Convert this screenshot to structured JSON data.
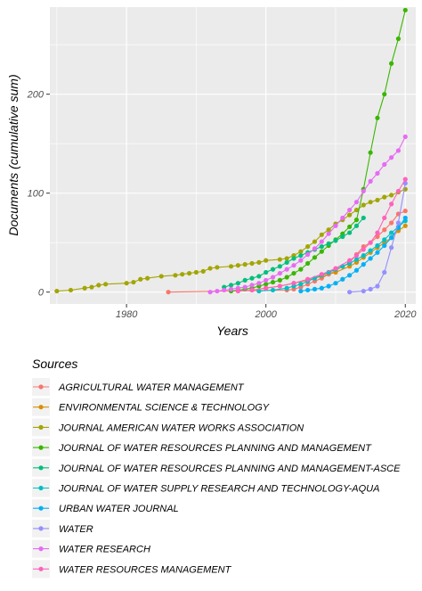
{
  "chart_data": {
    "type": "line",
    "title": "",
    "xlabel": "Years",
    "ylabel": "Documents (cumulative sum)",
    "xlim": [
      1969,
      2021.5
    ],
    "ylim": [
      -12,
      288
    ],
    "x_ticks": [
      1980,
      2000,
      2020
    ],
    "y_ticks": [
      0,
      100,
      200
    ],
    "grid": true,
    "legend": {
      "title": "Sources",
      "placement": "bottom"
    },
    "series": [
      {
        "name": "AGRICULTURAL WATER MANAGEMENT",
        "color": "#F8766D",
        "points": [
          [
            1986,
            0
          ],
          [
            2003,
            2
          ],
          [
            2004,
            3
          ],
          [
            2005,
            5
          ],
          [
            2006,
            8
          ],
          [
            2007,
            11
          ],
          [
            2008,
            14
          ],
          [
            2009,
            18
          ],
          [
            2010,
            22
          ],
          [
            2011,
            26
          ],
          [
            2012,
            30
          ],
          [
            2013,
            38
          ],
          [
            2014,
            46
          ],
          [
            2015,
            50
          ],
          [
            2016,
            56
          ],
          [
            2017,
            63
          ],
          [
            2018,
            70
          ],
          [
            2019,
            79
          ],
          [
            2020,
            82
          ]
        ]
      },
      {
        "name": "ENVIRONMENTAL SCIENCE & TECHNOLOGY",
        "color": "#D89000",
        "points": [
          [
            1998,
            2
          ],
          [
            2000,
            4
          ],
          [
            2002,
            6
          ],
          [
            2004,
            9
          ],
          [
            2006,
            12
          ],
          [
            2008,
            16
          ],
          [
            2010,
            20
          ],
          [
            2012,
            26
          ],
          [
            2013,
            30
          ],
          [
            2014,
            35
          ],
          [
            2015,
            40
          ],
          [
            2016,
            45
          ],
          [
            2017,
            50
          ],
          [
            2018,
            55
          ],
          [
            2019,
            62
          ],
          [
            2020,
            67
          ]
        ]
      },
      {
        "name": "JOURNAL AMERICAN WATER WORKS ASSOCIATION",
        "color": "#A3A500",
        "points": [
          [
            1970,
            1
          ],
          [
            1972,
            2
          ],
          [
            1974,
            4
          ],
          [
            1975,
            5
          ],
          [
            1976,
            7
          ],
          [
            1977,
            8
          ],
          [
            1980,
            9
          ],
          [
            1981,
            10
          ],
          [
            1982,
            13
          ],
          [
            1983,
            14
          ],
          [
            1985,
            16
          ],
          [
            1987,
            17
          ],
          [
            1988,
            18
          ],
          [
            1989,
            19
          ],
          [
            1990,
            20
          ],
          [
            1991,
            21
          ],
          [
            1992,
            24
          ],
          [
            1993,
            25
          ],
          [
            1995,
            26
          ],
          [
            1996,
            27
          ],
          [
            1997,
            28
          ],
          [
            1998,
            29
          ],
          [
            1999,
            30
          ],
          [
            2000,
            32
          ],
          [
            2002,
            33
          ],
          [
            2003,
            34
          ],
          [
            2004,
            37
          ],
          [
            2005,
            41
          ],
          [
            2006,
            46
          ],
          [
            2007,
            51
          ],
          [
            2008,
            58
          ],
          [
            2009,
            63
          ],
          [
            2010,
            69
          ],
          [
            2011,
            73
          ],
          [
            2012,
            78
          ],
          [
            2013,
            83
          ],
          [
            2014,
            88
          ],
          [
            2015,
            91
          ],
          [
            2016,
            93
          ],
          [
            2017,
            96
          ],
          [
            2018,
            98
          ],
          [
            2019,
            101
          ],
          [
            2020,
            104
          ]
        ]
      },
      {
        "name": "JOURNAL OF WATER RESOURCES PLANNING AND MANAGEMENT",
        "color": "#39B600",
        "points": [
          [
            1995,
            1
          ],
          [
            1996,
            2
          ],
          [
            1997,
            3
          ],
          [
            1998,
            4
          ],
          [
            1999,
            6
          ],
          [
            2000,
            8
          ],
          [
            2001,
            10
          ],
          [
            2002,
            12
          ],
          [
            2003,
            15
          ],
          [
            2004,
            19
          ],
          [
            2005,
            23
          ],
          [
            2006,
            29
          ],
          [
            2007,
            35
          ],
          [
            2008,
            41
          ],
          [
            2009,
            47
          ],
          [
            2010,
            53
          ],
          [
            2011,
            59
          ],
          [
            2012,
            66
          ],
          [
            2013,
            73
          ],
          [
            2014,
            104
          ],
          [
            2015,
            141
          ],
          [
            2016,
            176
          ],
          [
            2017,
            200
          ],
          [
            2018,
            231
          ],
          [
            2019,
            256
          ],
          [
            2020,
            285
          ]
        ]
      },
      {
        "name": "JOURNAL OF WATER RESOURCES PLANNING AND MANAGEMENT-ASCE",
        "color": "#00BF7D",
        "points": [
          [
            1994,
            5
          ],
          [
            1995,
            7
          ],
          [
            1996,
            9
          ],
          [
            1997,
            12
          ],
          [
            1998,
            14
          ],
          [
            1999,
            16
          ],
          [
            2000,
            20
          ],
          [
            2001,
            23
          ],
          [
            2002,
            26
          ],
          [
            2003,
            30
          ],
          [
            2004,
            34
          ],
          [
            2005,
            37
          ],
          [
            2006,
            40
          ],
          [
            2007,
            43
          ],
          [
            2008,
            46
          ],
          [
            2009,
            49
          ],
          [
            2010,
            52
          ],
          [
            2011,
            56
          ],
          [
            2012,
            60
          ],
          [
            2013,
            67
          ],
          [
            2014,
            75
          ]
        ]
      },
      {
        "name": "JOURNAL OF WATER SUPPLY RESEARCH AND TECHNOLOGY-AQUA",
        "color": "#00BFC4",
        "points": [
          [
            1999,
            1
          ],
          [
            2001,
            2
          ],
          [
            2003,
            4
          ],
          [
            2004,
            6
          ],
          [
            2005,
            8
          ],
          [
            2006,
            11
          ],
          [
            2007,
            14
          ],
          [
            2008,
            17
          ],
          [
            2009,
            20
          ],
          [
            2010,
            23
          ],
          [
            2011,
            26
          ],
          [
            2012,
            29
          ],
          [
            2013,
            33
          ],
          [
            2014,
            37
          ],
          [
            2015,
            42
          ],
          [
            2016,
            47
          ],
          [
            2017,
            53
          ],
          [
            2018,
            60
          ],
          [
            2019,
            66
          ],
          [
            2020,
            72
          ]
        ]
      },
      {
        "name": "URBAN WATER JOURNAL",
        "color": "#00B0F6",
        "points": [
          [
            2005,
            1
          ],
          [
            2006,
            2
          ],
          [
            2007,
            3
          ],
          [
            2008,
            4
          ],
          [
            2009,
            6
          ],
          [
            2010,
            9
          ],
          [
            2011,
            13
          ],
          [
            2012,
            17
          ],
          [
            2013,
            22
          ],
          [
            2014,
            28
          ],
          [
            2015,
            34
          ],
          [
            2016,
            40
          ],
          [
            2017,
            47
          ],
          [
            2018,
            55
          ],
          [
            2019,
            65
          ],
          [
            2020,
            75
          ]
        ]
      },
      {
        "name": "WATER",
        "color": "#9590FF",
        "points": [
          [
            2012,
            0
          ],
          [
            2014,
            1
          ],
          [
            2015,
            3
          ],
          [
            2016,
            6
          ],
          [
            2017,
            20
          ],
          [
            2018,
            45
          ],
          [
            2019,
            70
          ],
          [
            2020,
            110
          ]
        ]
      },
      {
        "name": "WATER RESEARCH",
        "color": "#E76BF3",
        "points": [
          [
            1992,
            0
          ],
          [
            1993,
            1
          ],
          [
            1994,
            2
          ],
          [
            1995,
            3
          ],
          [
            1996,
            4
          ],
          [
            1997,
            5
          ],
          [
            1998,
            7
          ],
          [
            1999,
            9
          ],
          [
            2000,
            12
          ],
          [
            2001,
            15
          ],
          [
            2002,
            19
          ],
          [
            2003,
            23
          ],
          [
            2004,
            27
          ],
          [
            2005,
            32
          ],
          [
            2006,
            38
          ],
          [
            2007,
            44
          ],
          [
            2008,
            51
          ],
          [
            2009,
            59
          ],
          [
            2010,
            67
          ],
          [
            2011,
            75
          ],
          [
            2012,
            83
          ],
          [
            2013,
            91
          ],
          [
            2014,
            102
          ],
          [
            2015,
            112
          ],
          [
            2016,
            120
          ],
          [
            2017,
            129
          ],
          [
            2018,
            136
          ],
          [
            2019,
            143
          ],
          [
            2020,
            157
          ]
        ]
      },
      {
        "name": "WATER RESOURCES MANAGEMENT",
        "color": "#FF62BC",
        "points": [
          [
            1996,
            1
          ],
          [
            1998,
            2
          ],
          [
            2000,
            4
          ],
          [
            2002,
            6
          ],
          [
            2004,
            9
          ],
          [
            2006,
            13
          ],
          [
            2008,
            18
          ],
          [
            2010,
            24
          ],
          [
            2012,
            32
          ],
          [
            2013,
            37
          ],
          [
            2014,
            43
          ],
          [
            2015,
            50
          ],
          [
            2016,
            60
          ],
          [
            2017,
            75
          ],
          [
            2018,
            89
          ],
          [
            2019,
            102
          ],
          [
            2020,
            114
          ]
        ]
      }
    ]
  }
}
